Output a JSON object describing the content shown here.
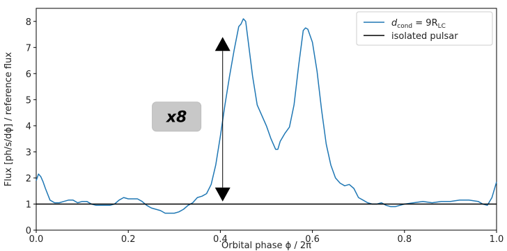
{
  "chart_data": {
    "type": "line",
    "xlabel": "Orbital phase ϕ / 2π",
    "ylabel": "Flux [ph/s/dϕ] / reference flux",
    "xlim": [
      0.0,
      1.0
    ],
    "ylim": [
      0,
      8.5
    ],
    "xticks": [
      "0.0",
      "0.2",
      "0.4",
      "0.6",
      "0.8",
      "1.0"
    ],
    "yticks": [
      "0",
      "1",
      "2",
      "3",
      "4",
      "5",
      "6",
      "7",
      "8"
    ],
    "grid": false,
    "legend_position": "top-right",
    "series": [
      {
        "name": "d_cond = 9R_LC",
        "legend_main": "d",
        "legend_sub": "cond",
        "legend_mid": " = 9R",
        "legend_sub2": "LC",
        "color": "#1f77b4",
        "x": [
          0.0,
          0.005,
          0.01,
          0.015,
          0.02,
          0.03,
          0.04,
          0.05,
          0.06,
          0.07,
          0.08,
          0.09,
          0.1,
          0.11,
          0.12,
          0.13,
          0.14,
          0.15,
          0.16,
          0.17,
          0.18,
          0.19,
          0.2,
          0.21,
          0.22,
          0.23,
          0.24,
          0.25,
          0.26,
          0.27,
          0.28,
          0.29,
          0.3,
          0.31,
          0.32,
          0.33,
          0.34,
          0.35,
          0.36,
          0.37,
          0.38,
          0.39,
          0.4,
          0.41,
          0.42,
          0.43,
          0.44,
          0.445,
          0.45,
          0.455,
          0.46,
          0.47,
          0.48,
          0.49,
          0.5,
          0.51,
          0.52,
          0.525,
          0.53,
          0.54,
          0.55,
          0.56,
          0.57,
          0.58,
          0.585,
          0.59,
          0.6,
          0.61,
          0.62,
          0.63,
          0.64,
          0.65,
          0.66,
          0.67,
          0.68,
          0.69,
          0.7,
          0.71,
          0.72,
          0.73,
          0.74,
          0.75,
          0.76,
          0.77,
          0.78,
          0.79,
          0.8,
          0.82,
          0.84,
          0.86,
          0.88,
          0.9,
          0.92,
          0.94,
          0.96,
          0.97,
          0.98,
          0.99,
          1.0
        ],
        "values": [
          1.9,
          2.15,
          2.05,
          1.85,
          1.6,
          1.15,
          1.05,
          1.05,
          1.1,
          1.15,
          1.15,
          1.05,
          1.1,
          1.1,
          1.0,
          0.95,
          0.95,
          0.95,
          0.95,
          1.0,
          1.15,
          1.25,
          1.2,
          1.2,
          1.2,
          1.1,
          0.95,
          0.85,
          0.8,
          0.75,
          0.65,
          0.65,
          0.65,
          0.7,
          0.8,
          0.95,
          1.05,
          1.25,
          1.3,
          1.4,
          1.75,
          2.5,
          3.6,
          4.8,
          5.9,
          6.9,
          7.8,
          7.9,
          8.1,
          8.0,
          7.3,
          5.9,
          4.8,
          4.4,
          4.0,
          3.5,
          3.1,
          3.1,
          3.4,
          3.7,
          3.95,
          4.8,
          6.3,
          7.65,
          7.75,
          7.7,
          7.2,
          6.1,
          4.6,
          3.3,
          2.5,
          2.0,
          1.8,
          1.7,
          1.75,
          1.6,
          1.25,
          1.15,
          1.05,
          1.0,
          1.0,
          1.05,
          0.95,
          0.9,
          0.9,
          0.95,
          1.0,
          1.05,
          1.1,
          1.05,
          1.1,
          1.1,
          1.15,
          1.15,
          1.1,
          1.0,
          0.95,
          1.25,
          1.85
        ]
      },
      {
        "name": "isolated pulsar",
        "color": "#000000",
        "x": [
          0.0,
          1.0
        ],
        "values": [
          1.0,
          1.0
        ]
      }
    ],
    "annotations": [
      {
        "type": "double-arrow",
        "x": 0.405,
        "y_from": 1.1,
        "y_to": 7.4
      },
      {
        "type": "badge",
        "text": "x8",
        "x": 0.305,
        "y": 4.35
      }
    ]
  }
}
